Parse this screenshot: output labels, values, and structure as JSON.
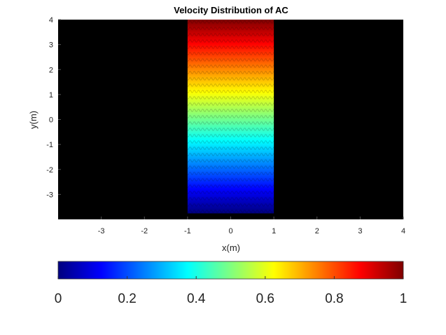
{
  "chart_data": {
    "type": "heatmap",
    "title": "Velocity Distribution of AC",
    "xlabel": "x(m)",
    "ylabel": "y(m)",
    "xlim": [
      -4,
      4
    ],
    "ylim": [
      -4,
      4
    ],
    "x_ticks": [
      -3,
      -2,
      -1,
      0,
      1,
      2,
      3,
      4
    ],
    "y_ticks": [
      -3,
      -2,
      -1,
      0,
      1,
      2,
      3,
      4
    ],
    "x_tick_labels": [
      "-3",
      "-2",
      "-1",
      "0",
      "1",
      "2",
      "3",
      "4"
    ],
    "y_tick_labels": [
      "-3",
      "-2",
      "-1",
      "0",
      "1",
      "2",
      "3",
      "4"
    ],
    "background_color": "#000000",
    "colormap": "jet",
    "region": {
      "x": [
        -1,
        1
      ],
      "y": [
        -4,
        4
      ]
    },
    "gradient_direction": "vertical",
    "value_at_bottom": 0,
    "value_at_top": 1,
    "colorbar": {
      "position": "bottom",
      "range": [
        0,
        1
      ],
      "ticks": [
        0,
        0.2,
        0.4,
        0.6,
        0.8,
        1
      ],
      "tick_labels": [
        "0",
        "0.2",
        "0.4",
        "0.6",
        "0.8",
        "1"
      ]
    }
  }
}
